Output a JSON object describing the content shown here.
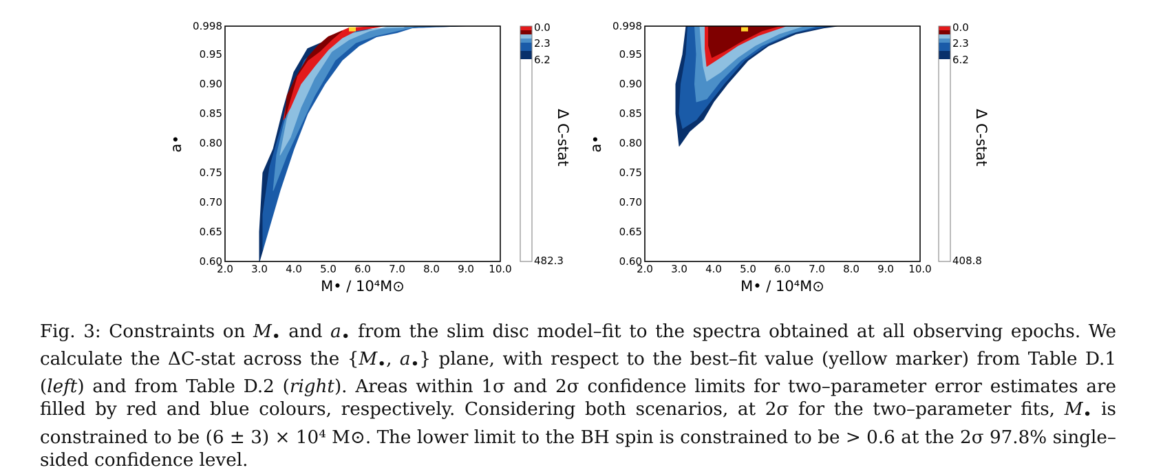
{
  "chart_data": [
    {
      "type": "contour",
      "panel": "left",
      "xlabel": "M• / 10⁴M⊙",
      "ylabel": "a•",
      "xlim": [
        2.0,
        10.0
      ],
      "ylim": [
        0.6,
        0.998
      ],
      "xticks": [
        "2.0",
        "3.0",
        "4.0",
        "5.0",
        "6.0",
        "7.0",
        "8.0",
        "9.0",
        "10.0"
      ],
      "yticks": [
        "0.60",
        "0.65",
        "0.70",
        "0.75",
        "0.80",
        "0.85",
        "0.90",
        "0.95",
        "0.998"
      ],
      "colorbar_label": "Δ C-stat",
      "colorbar_ticks": [
        "0.0",
        "2.3",
        "6.2",
        "482.3"
      ],
      "best_fit": {
        "x": 5.7,
        "y": 0.995
      },
      "contours": [
        {
          "level": "6.2",
          "color": "#08306b",
          "points": [
            [
              3.0,
              0.6
            ],
            [
              3.0,
              0.65
            ],
            [
              3.1,
              0.75
            ],
            [
              3.4,
              0.79
            ],
            [
              3.7,
              0.86
            ],
            [
              4.0,
              0.92
            ],
            [
              4.4,
              0.96
            ],
            [
              5.0,
              0.975
            ],
            [
              5.6,
              0.99
            ],
            [
              6.4,
              0.993
            ],
            [
              7.2,
              0.996
            ],
            [
              8.2,
              0.997
            ],
            [
              9.0,
              0.998
            ],
            [
              8.4,
              0.998
            ],
            [
              7.4,
              0.995
            ],
            [
              6.6,
              0.99
            ],
            [
              6.2,
              0.985
            ],
            [
              5.8,
              0.97
            ],
            [
              5.4,
              0.95
            ],
            [
              4.9,
              0.92
            ],
            [
              4.4,
              0.87
            ],
            [
              4.0,
              0.82
            ],
            [
              3.6,
              0.75
            ],
            [
              3.3,
              0.68
            ],
            [
              3.1,
              0.62
            ]
          ]
        },
        {
          "level": "6.2",
          "color": "#1a5ba8",
          "points": [
            [
              3.1,
              0.62
            ],
            [
              3.1,
              0.68
            ],
            [
              3.3,
              0.76
            ],
            [
              3.6,
              0.82
            ],
            [
              3.9,
              0.88
            ],
            [
              4.3,
              0.94
            ],
            [
              5.0,
              0.975
            ],
            [
              5.6,
              0.99
            ],
            [
              6.6,
              0.994
            ],
            [
              7.8,
              0.996
            ],
            [
              8.8,
              0.998
            ],
            [
              8.4,
              0.998
            ],
            [
              7.6,
              0.998
            ],
            [
              7.0,
              0.987
            ],
            [
              6.4,
              0.98
            ],
            [
              5.9,
              0.965
            ],
            [
              5.4,
              0.94
            ],
            [
              4.9,
              0.9
            ],
            [
              4.4,
              0.85
            ],
            [
              4.0,
              0.79
            ],
            [
              3.6,
              0.72
            ],
            [
              3.3,
              0.66
            ]
          ]
        },
        {
          "level": "2.3",
          "color": "#4b8fc8",
          "points": [
            [
              3.4,
              0.72
            ],
            [
              3.5,
              0.78
            ],
            [
              3.7,
              0.83
            ],
            [
              4.0,
              0.89
            ],
            [
              4.4,
              0.94
            ],
            [
              5.0,
              0.97
            ],
            [
              5.6,
              0.985
            ],
            [
              6.4,
              0.993
            ],
            [
              7.2,
              0.996
            ],
            [
              8.2,
              0.998
            ],
            [
              7.6,
              0.998
            ],
            [
              7.0,
              0.99
            ],
            [
              6.4,
              0.982
            ],
            [
              5.8,
              0.97
            ],
            [
              5.2,
              0.94
            ],
            [
              4.6,
              0.88
            ],
            [
              4.2,
              0.83
            ],
            [
              3.8,
              0.78
            ]
          ]
        },
        {
          "level": "2.3",
          "color": "#8ebfe0",
          "points": [
            [
              3.6,
              0.78
            ],
            [
              3.8,
              0.84
            ],
            [
              4.1,
              0.9
            ],
            [
              4.5,
              0.94
            ],
            [
              5.0,
              0.965
            ],
            [
              5.6,
              0.985
            ],
            [
              6.4,
              0.994
            ],
            [
              7.2,
              0.996
            ],
            [
              6.8,
              0.998
            ],
            [
              6.2,
              0.99
            ],
            [
              5.6,
              0.975
            ],
            [
              5.1,
              0.955
            ],
            [
              4.6,
              0.91
            ],
            [
              4.2,
              0.86
            ],
            [
              3.9,
              0.81
            ]
          ]
        },
        {
          "level": "0.0",
          "color": "#e31a1c",
          "points": [
            [
              3.7,
              0.84
            ],
            [
              3.8,
              0.87
            ],
            [
              4.0,
              0.905
            ],
            [
              4.3,
              0.935
            ],
            [
              4.7,
              0.96
            ],
            [
              5.0,
              0.972
            ],
            [
              5.2,
              0.985
            ],
            [
              5.6,
              0.995
            ],
            [
              6.6,
              0.998
            ],
            [
              6.4,
              0.996
            ],
            [
              5.8,
              0.99
            ],
            [
              5.4,
              0.978
            ],
            [
              5.0,
              0.958
            ],
            [
              4.6,
              0.93
            ],
            [
              4.2,
              0.9
            ],
            [
              3.9,
              0.86
            ]
          ]
        },
        {
          "level": "0.0",
          "color": "#7f0000",
          "points": [
            [
              3.75,
              0.843
            ],
            [
              3.8,
              0.88
            ],
            [
              4.05,
              0.91
            ],
            [
              4.4,
              0.94
            ],
            [
              4.75,
              0.955
            ],
            [
              5.1,
              0.975
            ],
            [
              5.4,
              0.99
            ],
            [
              5.0,
              0.98
            ],
            [
              4.7,
              0.965
            ],
            [
              4.4,
              0.945
            ],
            [
              4.1,
              0.915
            ],
            [
              3.85,
              0.865
            ]
          ]
        }
      ]
    },
    {
      "type": "contour",
      "panel": "right",
      "xlabel": "M• / 10⁴M⊙",
      "ylabel": "a•",
      "xlim": [
        2.0,
        10.0
      ],
      "ylim": [
        0.6,
        0.998
      ],
      "xticks": [
        "2.0",
        "3.0",
        "4.0",
        "5.0",
        "6.0",
        "7.0",
        "8.0",
        "9.0",
        "10.0"
      ],
      "yticks": [
        "0.60",
        "0.65",
        "0.70",
        "0.75",
        "0.80",
        "0.85",
        "0.90",
        "0.95",
        "0.998"
      ],
      "colorbar_label": "Δ C-stat",
      "colorbar_ticks": [
        "0.0",
        "2.3",
        "6.2",
        "408.8"
      ],
      "best_fit": {
        "x": 4.9,
        "y": 0.995
      },
      "contours": [
        {
          "level": "6.2",
          "color": "#08306b",
          "points": [
            [
              3.2,
              0.998
            ],
            [
              3.1,
              0.95
            ],
            [
              2.9,
              0.9
            ],
            [
              2.9,
              0.85
            ],
            [
              3.0,
              0.795
            ],
            [
              3.3,
              0.82
            ],
            [
              3.7,
              0.84
            ],
            [
              4.0,
              0.87
            ],
            [
              4.4,
              0.9
            ],
            [
              5.0,
              0.94
            ],
            [
              5.6,
              0.965
            ],
            [
              6.4,
              0.985
            ],
            [
              7.2,
              0.995
            ],
            [
              7.6,
              0.998
            ]
          ]
        },
        {
          "level": "6.2",
          "color": "#1a5ba8",
          "points": [
            [
              3.25,
              0.998
            ],
            [
              3.2,
              0.95
            ],
            [
              3.05,
              0.9
            ],
            [
              3.0,
              0.85
            ],
            [
              3.1,
              0.825
            ],
            [
              3.5,
              0.84
            ],
            [
              3.9,
              0.87
            ],
            [
              4.3,
              0.9
            ],
            [
              4.9,
              0.94
            ],
            [
              5.6,
              0.968
            ],
            [
              6.4,
              0.988
            ],
            [
              7.3,
              0.998
            ]
          ]
        },
        {
          "level": "2.3",
          "color": "#4b8fc8",
          "points": [
            [
              3.45,
              0.998
            ],
            [
              3.5,
              0.95
            ],
            [
              3.45,
              0.9
            ],
            [
              3.5,
              0.87
            ],
            [
              3.8,
              0.875
            ],
            [
              4.2,
              0.905
            ],
            [
              4.8,
              0.94
            ],
            [
              5.4,
              0.965
            ],
            [
              6.2,
              0.985
            ],
            [
              7.0,
              0.998
            ]
          ]
        },
        {
          "level": "2.3",
          "color": "#8ebfe0",
          "points": [
            [
              3.6,
              0.998
            ],
            [
              3.65,
              0.96
            ],
            [
              3.7,
              0.93
            ],
            [
              3.8,
              0.905
            ],
            [
              4.2,
              0.92
            ],
            [
              4.7,
              0.945
            ],
            [
              5.2,
              0.965
            ],
            [
              5.9,
              0.985
            ],
            [
              6.6,
              0.998
            ]
          ]
        },
        {
          "level": "0.0",
          "color": "#e31a1c",
          "points": [
            [
              3.75,
              0.998
            ],
            [
              3.75,
              0.96
            ],
            [
              3.8,
              0.93
            ],
            [
              4.2,
              0.945
            ],
            [
              4.7,
              0.965
            ],
            [
              5.3,
              0.982
            ],
            [
              6.1,
              0.998
            ]
          ]
        },
        {
          "level": "0.0",
          "color": "#7f0000",
          "points": [
            [
              3.85,
              0.998
            ],
            [
              3.85,
              0.965
            ],
            [
              3.95,
              0.945
            ],
            [
              4.3,
              0.955
            ],
            [
              4.8,
              0.972
            ],
            [
              5.4,
              0.99
            ],
            [
              5.9,
              0.998
            ]
          ]
        }
      ]
    }
  ],
  "colorbar_colors": [
    "#e31a1c",
    "#7f0000",
    "#8ebfe0",
    "#4b8fc8",
    "#1a5ba8",
    "#08306b",
    "#ffffff"
  ],
  "caption": {
    "l1_a": "Fig. 3: Constraints on ",
    "l1_m": "M",
    "l1_b": " and ",
    "l1_ai": "a",
    "l1_c": " from the slim disc model–fit to the spectra obtained at all observing epochs. We",
    "l2_a": "calculate the ΔC-stat across the {",
    "l2_m": "M",
    "l2_sep": ", ",
    "l2_ai": "a",
    "l2_b": "} plane, with respect to the best–fit value (yellow marker) from Table D.1 (",
    "l2_left": "left",
    "l2_c": ")",
    "l3_a": "and from Table D.2 (",
    "l3_right": "right",
    "l3_b": "). Areas within 1σ and 2σ confidence limits for two–parameter error estimates are filled by",
    "l4_a": "red and blue colours, respectively. Considering both scenarios, at 2σ for the two–parameter fits, ",
    "l4_m": "M",
    "l4_b": " is constrained to be",
    "l5": "(6 ± 3) × 10⁴ M⊙. The lower limit to the BH spin is constrained to be > 0.6 at the 2σ 97.8% single–sided confidence level.",
    "bullet": "•"
  }
}
